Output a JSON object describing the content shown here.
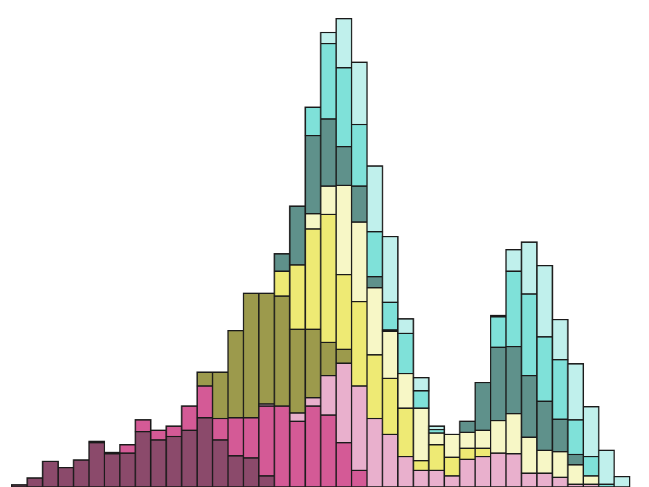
{
  "chart_data": {
    "type": "bar",
    "stacked": true,
    "ylim": [
      0,
      704
    ],
    "edge_color": "#1a1a1a",
    "series": [
      {
        "color": "#8b4a6b",
        "values": [
          3,
          13,
          37,
          28,
          39,
          64,
          48,
          49,
          80,
          68,
          73,
          82,
          100,
          68,
          45,
          42,
          16,
          0,
          0,
          0,
          0,
          0,
          0,
          0,
          0,
          0,
          0,
          0,
          0,
          0,
          0,
          0,
          0,
          0,
          0,
          0,
          0,
          0,
          0,
          0
        ]
      },
      {
        "color": "#d45a96",
        "values": [
          0,
          0,
          0,
          0,
          0,
          2,
          2,
          12,
          17,
          14,
          15,
          35,
          46,
          31,
          55,
          58,
          101,
          117,
          95,
          117,
          104,
          64,
          24,
          0,
          0,
          0,
          0,
          0,
          0,
          0,
          0,
          0,
          0,
          0,
          0,
          0,
          0,
          0,
          0,
          0
        ]
      },
      {
        "color": "#e9b0cd",
        "values": [
          0,
          0,
          0,
          0,
          0,
          0,
          0,
          0,
          0,
          0,
          0,
          0,
          0,
          0,
          0,
          0,
          3,
          0,
          12,
          12,
          57,
          115,
          122,
          99,
          76,
          44,
          24,
          24,
          16,
          40,
          44,
          49,
          48,
          20,
          20,
          14,
          4,
          4,
          0,
          0
        ]
      },
      {
        "color": "#9c9a4c",
        "values": [
          0,
          0,
          0,
          0,
          0,
          0,
          0,
          0,
          0,
          0,
          0,
          0,
          20,
          67,
          126,
          180,
          160,
          159,
          121,
          99,
          48,
          20,
          0,
          0,
          0,
          0,
          0,
          0,
          0,
          0,
          0,
          0,
          0,
          0,
          0,
          0,
          0,
          0,
          0,
          0
        ]
      },
      {
        "color": "#eeea74",
        "values": [
          0,
          0,
          0,
          0,
          0,
          0,
          0,
          0,
          0,
          0,
          0,
          0,
          0,
          0,
          0,
          0,
          0,
          36,
          93,
          145,
          185,
          108,
          122,
          92,
          81,
          70,
          14,
          37,
          27,
          16,
          12,
          0,
          0,
          0,
          0,
          0,
          0,
          0,
          0,
          0
        ]
      },
      {
        "color": "#f7f7c6",
        "values": [
          0,
          0,
          0,
          0,
          0,
          0,
          0,
          0,
          0,
          0,
          0,
          0,
          0,
          0,
          0,
          0,
          0,
          0,
          0,
          22,
          41,
          129,
          115,
          97,
          68,
          50,
          76,
          17,
          33,
          23,
          26,
          47,
          58,
          52,
          33,
          37,
          28,
          12,
          0,
          0
        ]
      },
      {
        "color": "#5f918b",
        "values": [
          0,
          0,
          0,
          0,
          0,
          0,
          0,
          0,
          0,
          0,
          0,
          0,
          0,
          0,
          0,
          0,
          0,
          25,
          85,
          113,
          97,
          56,
          52,
          16,
          2,
          0,
          0,
          0,
          0,
          16,
          69,
          106,
          97,
          89,
          71,
          47,
          15,
          0,
          0,
          0
        ]
      },
      {
        "color": "#7fe1d9",
        "values": [
          0,
          0,
          0,
          0,
          0,
          0,
          0,
          0,
          0,
          0,
          0,
          0,
          0,
          0,
          0,
          0,
          0,
          0,
          0,
          41,
          109,
          114,
          89,
          65,
          40,
          58,
          25,
          5,
          0,
          0,
          0,
          44,
          109,
          118,
          93,
          86,
          50,
          28,
          4,
          0
        ]
      },
      {
        "color": "#c0f0ec",
        "values": [
          0,
          0,
          0,
          0,
          0,
          0,
          0,
          0,
          0,
          0,
          0,
          0,
          0,
          0,
          0,
          0,
          0,
          0,
          0,
          0,
          16,
          71,
          90,
          95,
          95,
          21,
          19,
          5,
          0,
          0,
          0,
          2,
          31,
          75,
          103,
          58,
          81,
          72,
          49,
          15
        ]
      }
    ]
  }
}
